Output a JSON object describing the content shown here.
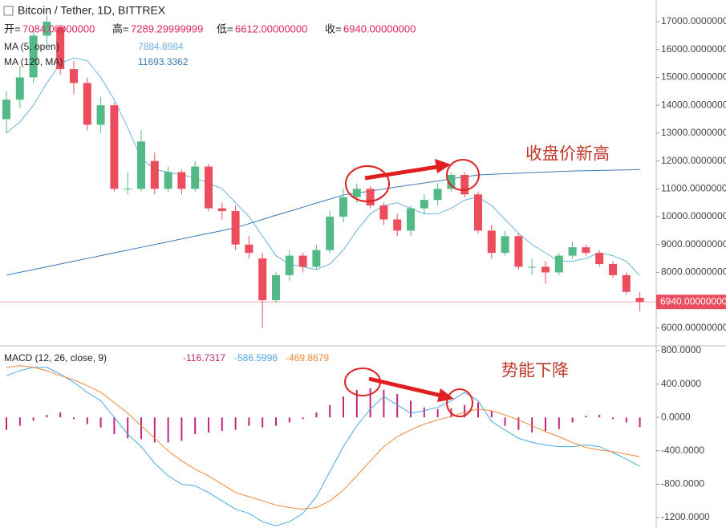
{
  "chart_data": [
    {
      "type": "candlestick",
      "title": "Bitcoin / Tether, 1D, BITTREX",
      "ohlc_labels": [
        {
          "label": "开=",
          "value": "7084.00000000"
        },
        {
          "label": "高=",
          "value": "7289.29999999"
        },
        {
          "label": "低=",
          "value": "6612.00000000"
        },
        {
          "label": "收=",
          "value": "6940.00000000"
        }
      ],
      "open": [
        13500,
        14200,
        15000,
        16500,
        16800,
        15300,
        14800,
        13300,
        14000,
        11000,
        11000,
        12000,
        11000,
        11600,
        11000,
        11800,
        10300,
        10200,
        9000,
        8500,
        7000,
        7900,
        8600,
        8200,
        8800,
        10000,
        10700,
        11000,
        10400,
        9900,
        9500,
        10300,
        10600,
        11000,
        11500,
        10800,
        9500,
        8700,
        9300,
        8200,
        8200,
        8000,
        8600,
        8900,
        8700,
        8300,
        7900,
        7084
      ],
      "high": [
        14500,
        15400,
        16800,
        17200,
        16900,
        15600,
        15000,
        14300,
        14100,
        11600,
        13100,
        12300,
        11800,
        11700,
        12000,
        11900,
        10500,
        10400,
        9300,
        8700,
        8000,
        8800,
        8700,
        9000,
        10200,
        11000,
        11200,
        11100,
        10500,
        10100,
        10400,
        10800,
        11200,
        11600,
        11600,
        10900,
        9700,
        9500,
        9400,
        8500,
        8400,
        8700,
        9100,
        9000,
        8800,
        8400,
        8000,
        7289
      ],
      "low": [
        13000,
        13900,
        14800,
        16200,
        15100,
        14400,
        13100,
        13000,
        10900,
        10800,
        10900,
        10800,
        10900,
        10800,
        10900,
        10200,
        9900,
        8800,
        8500,
        6000,
        6900,
        7700,
        8000,
        8100,
        8700,
        9800,
        10500,
        10300,
        9700,
        9300,
        9300,
        10100,
        10400,
        10900,
        10700,
        9400,
        8500,
        8600,
        8100,
        7900,
        7600,
        7900,
        8500,
        8600,
        8200,
        7800,
        7200,
        6612
      ],
      "close": [
        14200,
        15000,
        16500,
        17000,
        15300,
        14800,
        13300,
        14000,
        11000,
        11000,
        12700,
        11000,
        11600,
        11000,
        11800,
        10300,
        10200,
        9000,
        8700,
        7000,
        7900,
        8600,
        8200,
        8800,
        10000,
        10700,
        11000,
        10400,
        9900,
        9500,
        10300,
        10600,
        11000,
        11500,
        10800,
        9500,
        8700,
        9300,
        8200,
        8200,
        8000,
        8600,
        8900,
        8700,
        8300,
        7900,
        7300,
        6940
      ],
      "up_color": "#53b987",
      "down_color": "#eb4d5c",
      "lines": [
        {
          "name": "MA (5, open)",
          "legend_value": "7884.8984",
          "color": "#6bb3e0",
          "values": [
            13000,
            13400,
            14000,
            14800,
            15500,
            15700,
            15600,
            15000,
            14200,
            13200,
            12100,
            11700,
            11600,
            11500,
            11400,
            11200,
            11000,
            10500,
            10000,
            9300,
            8600,
            8300,
            8200,
            8100,
            8300,
            8800,
            9500,
            10100,
            10400,
            10500,
            10300,
            10100,
            10100,
            10300,
            10600,
            10700,
            10400,
            9900,
            9400,
            9000,
            8700,
            8400,
            8400,
            8500,
            8700,
            8600,
            8400,
            7885
          ]
        },
        {
          "name": "MA (120, MA)",
          "legend_value": "11693.3362",
          "color": "#3c78b4",
          "values": [
            7900,
            8000,
            8100,
            8200,
            8300,
            8400,
            8500,
            8600,
            8700,
            8800,
            8900,
            9000,
            9100,
            9200,
            9300,
            9400,
            9500,
            9600,
            9750,
            9900,
            10050,
            10190,
            10340,
            10490,
            10630,
            10780,
            10850,
            10920,
            10990,
            11070,
            11140,
            11210,
            11280,
            11360,
            11430,
            11500,
            11520,
            11540,
            11560,
            11580,
            11600,
            11620,
            11640,
            11650,
            11660,
            11670,
            11680,
            11693
          ]
        }
      ],
      "last_price": {
        "value": 6940,
        "label": "6940.00000000"
      },
      "ylim": [
        5390,
        17780
      ],
      "yticks": [
        {
          "value": 6000,
          "label": "6000.00000000"
        },
        {
          "value": 7000,
          "label": "7000.00000000"
        },
        {
          "value": 8000,
          "label": "8000.00000000"
        },
        {
          "value": 9000,
          "label": "9000.00000000"
        },
        {
          "value": 10000,
          "label": "10000.0000000"
        },
        {
          "value": 11000,
          "label": "11000.0000000"
        },
        {
          "value": 12000,
          "label": "12000.0000000"
        },
        {
          "value": 13000,
          "label": "13000.0000000"
        },
        {
          "value": 14000,
          "label": "14000.0000000"
        },
        {
          "value": 15000,
          "label": "15000.0000000"
        },
        {
          "value": 16000,
          "label": "16000.0000000"
        },
        {
          "value": 17000,
          "label": "17000.0000000"
        }
      ],
      "annotation": "收盘价新高"
    },
    {
      "type": "macd",
      "title": "MACD (12, 26, close, 9)",
      "series": [
        {
          "legend_value": "-116.7317",
          "color": "#c0267a",
          "values": [
            -150,
            -100,
            -40,
            30,
            60,
            -20,
            -80,
            -120,
            -200,
            -250,
            -260,
            -300,
            -300,
            -280,
            -200,
            -180,
            -160,
            -150,
            -100,
            -120,
            -100,
            -60,
            -20,
            60,
            150,
            250,
            330,
            350,
            330,
            280,
            200,
            120,
            100,
            110,
            150,
            180,
            80,
            -100,
            -150,
            -180,
            -160,
            -140,
            -60,
            20,
            30,
            -20,
            -60,
            -117
          ]
        },
        {
          "legend_value": "-586.5996",
          "color": "#4aa8e0",
          "values": [
            500,
            560,
            600,
            600,
            520,
            420,
            300,
            200,
            0,
            -200,
            -350,
            -550,
            -700,
            -800,
            -820,
            -900,
            -1000,
            -1100,
            -1150,
            -1250,
            -1300,
            -1250,
            -1150,
            -950,
            -650,
            -350,
            -100,
            100,
            250,
            150,
            50,
            80,
            120,
            200,
            300,
            200,
            -50,
            -150,
            -250,
            -300,
            -330,
            -350,
            -350,
            -330,
            -350,
            -420,
            -500,
            -587
          ]
        },
        {
          "legend_value": "-469.8679",
          "color": "#f0883a",
          "values": [
            600,
            620,
            600,
            560,
            500,
            450,
            380,
            300,
            180,
            50,
            -100,
            -250,
            -400,
            -520,
            -620,
            -700,
            -800,
            -900,
            -950,
            -1000,
            -1050,
            -1080,
            -1100,
            -1080,
            -1000,
            -870,
            -700,
            -520,
            -350,
            -230,
            -150,
            -80,
            -30,
            10,
            60,
            100,
            80,
            30,
            -30,
            -100,
            -170,
            -230,
            -300,
            -360,
            -390,
            -410,
            -440,
            -470
          ]
        }
      ],
      "ylim": [
        -1325,
        848
      ],
      "yticks": [
        {
          "value": 800,
          "label": "800.0000"
        },
        {
          "value": 400,
          "label": "400.0000"
        },
        {
          "value": 0,
          "label": "0.0000"
        },
        {
          "value": -400,
          "label": "-400.0000"
        },
        {
          "value": -800,
          "label": "-800.0000"
        },
        {
          "value": -1200,
          "label": "-1200.0000"
        }
      ],
      "annotation": "势能下降"
    }
  ]
}
